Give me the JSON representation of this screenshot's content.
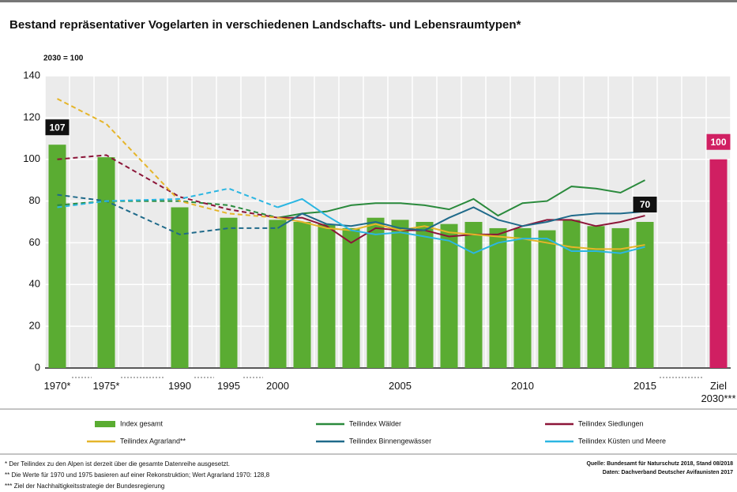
{
  "chart_data": {
    "type": "bar-line",
    "title": "Bestand repräsentativer Vogelarten in verschiedenen Landschafts- und Lebensraumtypen*",
    "subtitle": "2030 = 100",
    "categories": [
      "1970*",
      "1975*",
      "1990",
      "1995",
      "2000",
      null,
      null,
      null,
      null,
      "2005",
      null,
      null,
      null,
      null,
      "2010",
      null,
      null,
      null,
      null,
      "2015",
      "Ziel 2030***"
    ],
    "ylim": [
      0,
      140
    ],
    "yticks": [
      0,
      20,
      40,
      60,
      80,
      100,
      120,
      140
    ],
    "grid": true,
    "bar_series": {
      "name": "Index gesamt",
      "color": "#5aac32",
      "values": [
        107,
        101,
        77,
        72,
        71,
        70,
        69,
        67,
        72,
        71,
        70,
        69,
        70,
        67,
        67,
        66,
        71,
        68,
        67,
        70,
        null
      ],
      "value_labels": [
        "107",
        null,
        null,
        null,
        null,
        null,
        null,
        null,
        null,
        null,
        null,
        null,
        null,
        null,
        null,
        null,
        null,
        null,
        null,
        "70",
        null
      ]
    },
    "target_series": {
      "color": "#d01f62",
      "values": [
        null,
        null,
        null,
        null,
        null,
        null,
        null,
        null,
        null,
        null,
        null,
        null,
        null,
        null,
        null,
        null,
        null,
        null,
        null,
        null,
        100
      ],
      "value_labels": [
        null,
        null,
        null,
        null,
        null,
        null,
        null,
        null,
        null,
        null,
        null,
        null,
        null,
        null,
        null,
        null,
        null,
        null,
        null,
        null,
        "100"
      ]
    },
    "series": [
      {
        "name": "Teilindex Wälder",
        "color": "#2a8a3c",
        "values": [
          78,
          80,
          80,
          78,
          72,
          74,
          75,
          78,
          79,
          79,
          78,
          76,
          81,
          73,
          79,
          80,
          87,
          86,
          84,
          90,
          null
        ]
      },
      {
        "name": "Teilindex Siedlungen",
        "color": "#8c1538",
        "values": [
          100,
          102,
          82,
          76,
          72,
          72,
          68,
          60,
          67,
          66,
          66,
          63,
          64,
          64,
          68,
          71,
          71,
          68,
          70,
          73,
          null
        ]
      },
      {
        "name": "Teilindex Agrarland**",
        "color": "#e5b52a",
        "values": [
          129,
          117,
          80,
          74,
          72,
          70,
          67,
          66,
          69,
          66,
          68,
          65,
          64,
          63,
          62,
          60,
          58,
          57,
          57,
          59,
          null
        ]
      },
      {
        "name": "Teilindex Binnengewässer",
        "color": "#1f6a8a",
        "values": [
          83,
          80,
          64,
          67,
          67,
          74,
          69,
          68,
          70,
          67,
          66,
          72,
          77,
          71,
          68,
          70,
          73,
          74,
          74,
          75,
          null
        ]
      },
      {
        "name": "Teilindex Küsten und Meere",
        "color": "#2bb6e2",
        "values": [
          77,
          80,
          81,
          86,
          77,
          81,
          73,
          66,
          64,
          65,
          63,
          61,
          55,
          60,
          62,
          62,
          56,
          56,
          55,
          58,
          null
        ]
      }
    ],
    "footnotes": [
      "* Der Teilindex zu den Alpen ist derzeit über die gesamte Datenreihe ausgesetzt.",
      "** Die Werte für 1970 und 1975 basieren auf einer Rekonstruktion; Wert Agrarland 1970: 128,8",
      "*** Ziel der Nachhaltigkeitsstrategie der Bundesregierung"
    ],
    "source": [
      "Quelle: Bundesamt für Naturschutz 2018, Stand 08/2018",
      "Daten: Dachverband Deutscher Avifaunisten 2017"
    ]
  }
}
